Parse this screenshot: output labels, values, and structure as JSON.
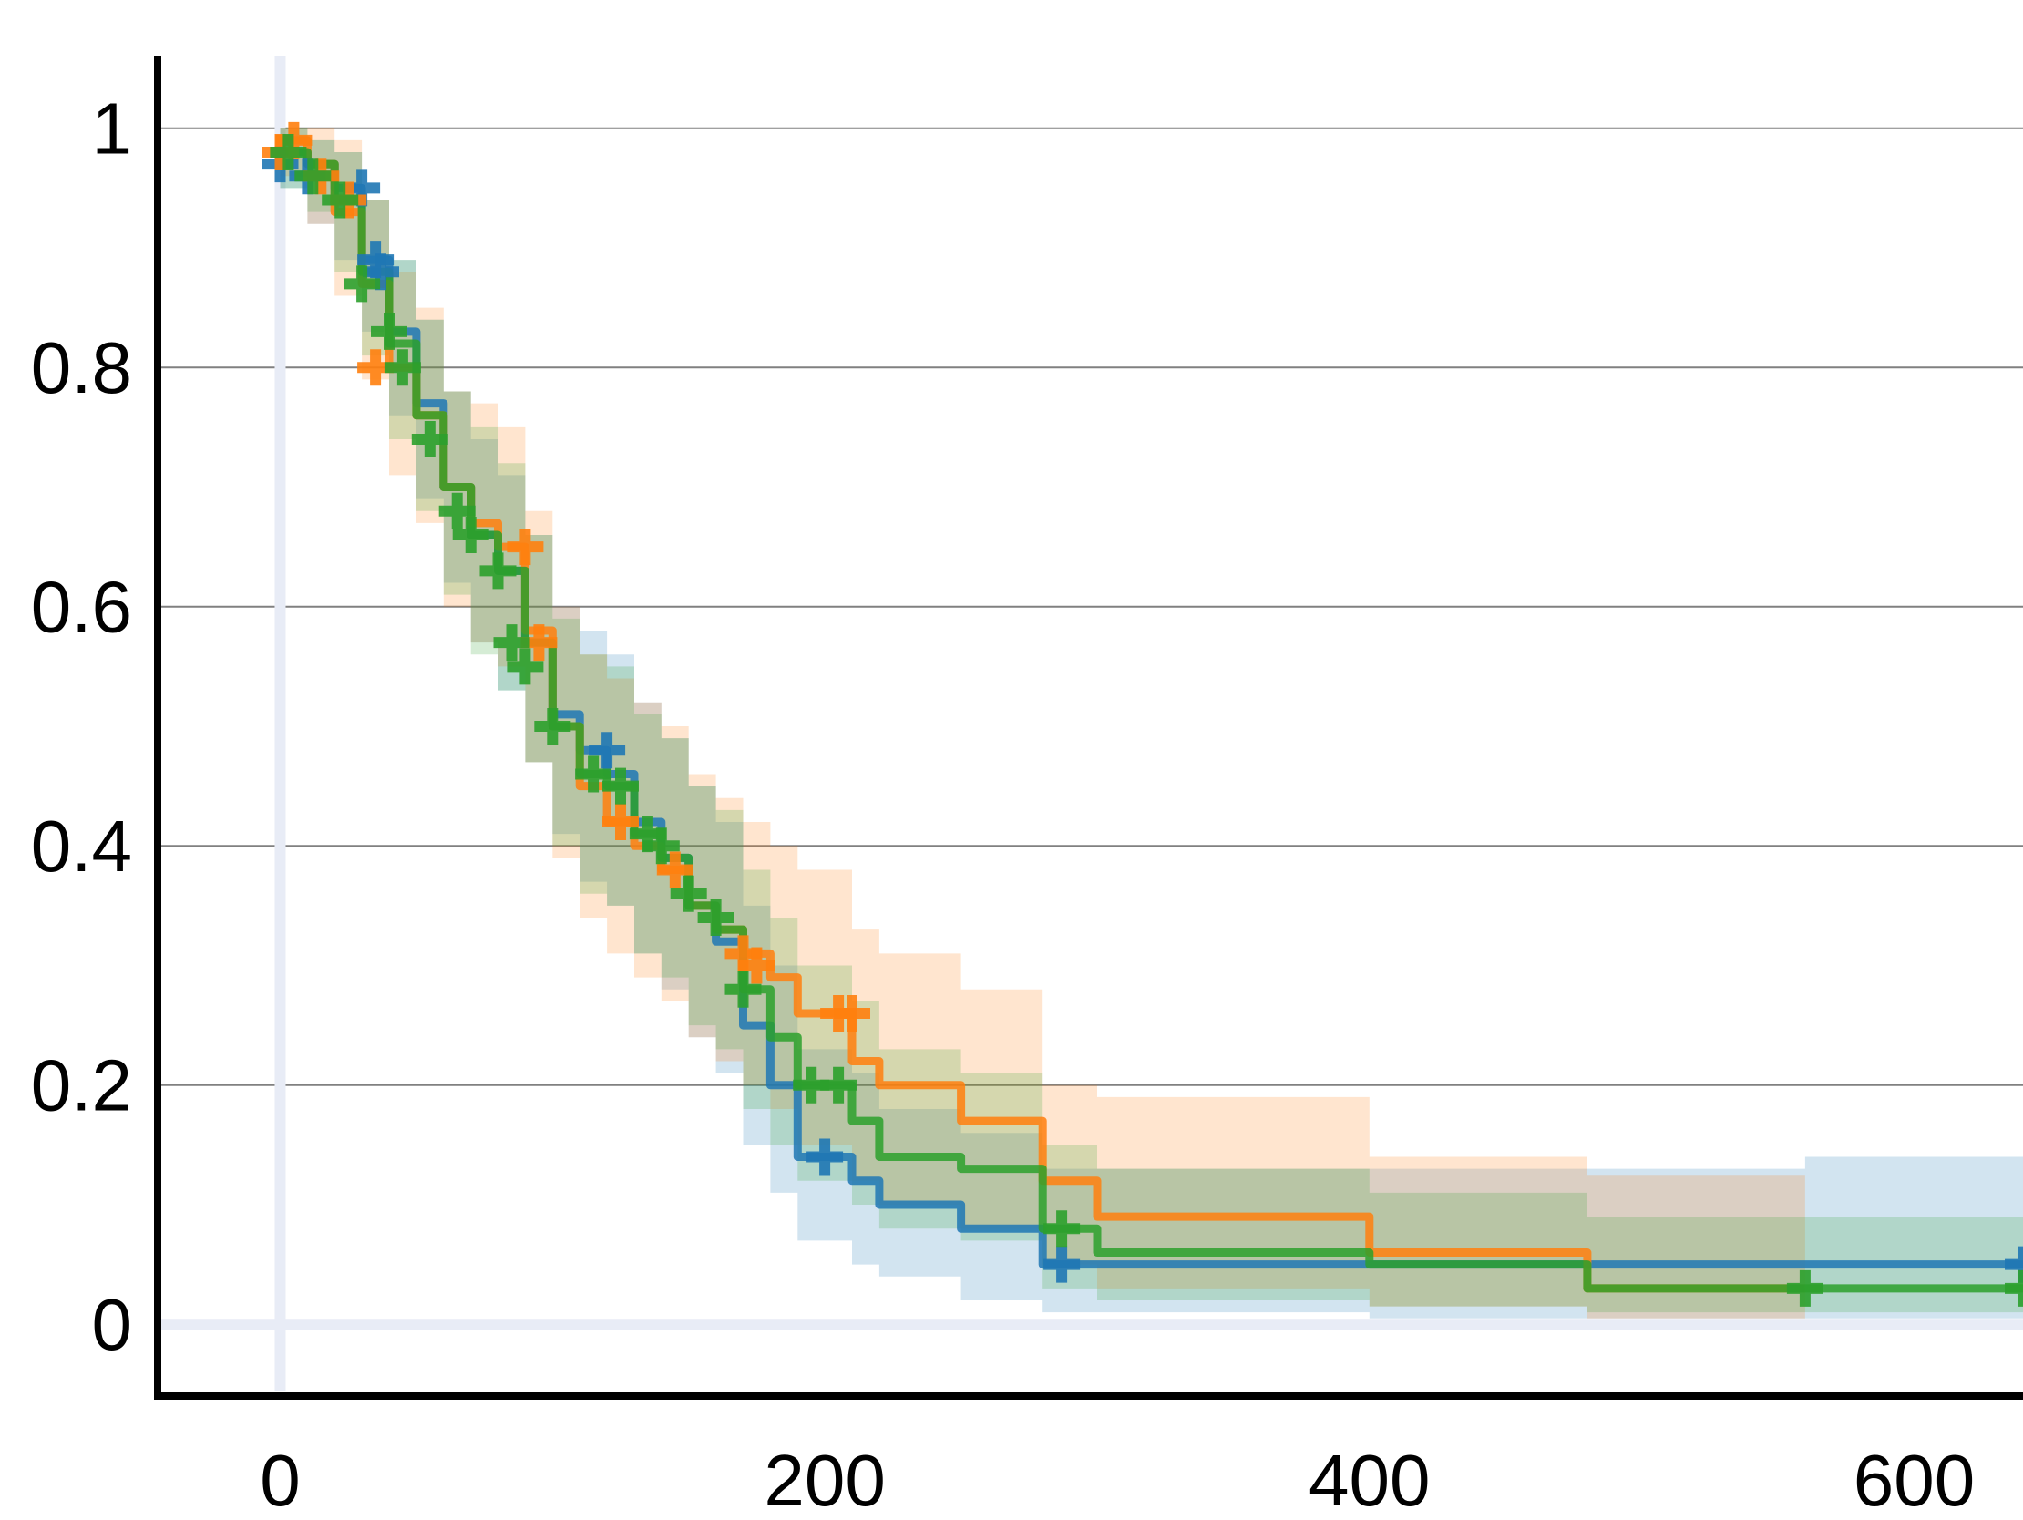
{
  "chart_data": {
    "type": "line",
    "title": "",
    "xlabel": "",
    "ylabel": "",
    "xlim": [
      -45,
      640
    ],
    "ylim": [
      -0.06,
      1.06
    ],
    "x_ticks": [
      0,
      200,
      400,
      600
    ],
    "x_tick_labels": [
      "0",
      "200",
      "400",
      "600"
    ],
    "y_ticks": [
      0,
      0.2,
      0.4,
      0.6,
      0.8,
      1
    ],
    "y_tick_labels": [
      "0",
      "0.2",
      "0.4",
      "0.6",
      "0.8",
      "1"
    ],
    "grid": "horizontal",
    "legend": "none",
    "colors": {
      "blue": "#1f77b4",
      "orange": "#ff7f0e",
      "green": "#2ca02c",
      "grid": "#808080",
      "zero_line": "#e8ecf6"
    },
    "series": [
      {
        "color": "#1f77b4",
        "x": [
          0,
          10,
          20,
          30,
          40,
          50,
          60,
          70,
          80,
          90,
          100,
          110,
          120,
          130,
          140,
          150,
          160,
          170,
          180,
          190,
          200,
          210,
          220,
          250,
          280,
          300,
          400,
          500,
          560,
          640
        ],
        "y": [
          0.98,
          0.97,
          0.95,
          0.89,
          0.83,
          0.77,
          0.7,
          0.66,
          0.63,
          0.57,
          0.51,
          0.48,
          0.46,
          0.42,
          0.39,
          0.35,
          0.32,
          0.25,
          0.2,
          0.14,
          0.14,
          0.12,
          0.1,
          0.08,
          0.05,
          0.05,
          0.05,
          0.05,
          0.05,
          0.05
        ],
        "lower": [
          0.95,
          0.92,
          0.89,
          0.83,
          0.76,
          0.69,
          0.62,
          0.57,
          0.53,
          0.47,
          0.41,
          0.37,
          0.35,
          0.31,
          0.28,
          0.24,
          0.21,
          0.15,
          0.11,
          0.07,
          0.07,
          0.05,
          0.04,
          0.02,
          0.01,
          0.01,
          0.005,
          0.005,
          0.005,
          0.005
        ],
        "upper": [
          1.0,
          0.99,
          0.98,
          0.94,
          0.89,
          0.84,
          0.78,
          0.74,
          0.71,
          0.66,
          0.6,
          0.58,
          0.56,
          0.52,
          0.49,
          0.45,
          0.42,
          0.35,
          0.3,
          0.23,
          0.23,
          0.21,
          0.18,
          0.16,
          0.13,
          0.13,
          0.13,
          0.13,
          0.14,
          0.14
        ],
        "censored": [
          [
            0,
            0.97
          ],
          [
            10,
            0.96
          ],
          [
            30,
            0.95
          ],
          [
            35,
            0.89
          ],
          [
            37,
            0.88
          ],
          [
            120,
            0.48
          ],
          [
            200,
            0.14
          ],
          [
            287,
            0.05
          ],
          [
            640,
            0.05
          ]
        ]
      },
      {
        "color": "#ff7f0e",
        "x": [
          0,
          10,
          20,
          30,
          40,
          50,
          60,
          70,
          80,
          90,
          100,
          110,
          120,
          130,
          140,
          150,
          160,
          170,
          180,
          190,
          200,
          210,
          220,
          250,
          280,
          300,
          400,
          480,
          560
        ],
        "y": [
          0.99,
          0.97,
          0.93,
          0.87,
          0.8,
          0.76,
          0.7,
          0.67,
          0.65,
          0.58,
          0.5,
          0.45,
          0.42,
          0.4,
          0.38,
          0.35,
          0.33,
          0.31,
          0.29,
          0.26,
          0.26,
          0.22,
          0.2,
          0.17,
          0.12,
          0.09,
          0.06,
          0.03,
          0.03
        ],
        "lower": [
          0.96,
          0.92,
          0.86,
          0.79,
          0.71,
          0.67,
          0.6,
          0.57,
          0.55,
          0.47,
          0.39,
          0.34,
          0.31,
          0.29,
          0.27,
          0.24,
          0.22,
          0.2,
          0.18,
          0.15,
          0.15,
          0.12,
          0.1,
          0.08,
          0.05,
          0.03,
          0.015,
          0.005,
          0.005
        ],
        "upper": [
          1.0,
          1.0,
          0.99,
          0.94,
          0.88,
          0.85,
          0.78,
          0.77,
          0.75,
          0.68,
          0.6,
          0.56,
          0.54,
          0.52,
          0.5,
          0.46,
          0.44,
          0.42,
          0.4,
          0.38,
          0.38,
          0.33,
          0.31,
          0.28,
          0.2,
          0.19,
          0.14,
          0.125,
          0.125
        ],
        "censored": [
          [
            0,
            0.98
          ],
          [
            5,
            0.99
          ],
          [
            15,
            0.96
          ],
          [
            25,
            0.94
          ],
          [
            35,
            0.8
          ],
          [
            90,
            0.65
          ],
          [
            95,
            0.57
          ],
          [
            125,
            0.42
          ],
          [
            145,
            0.38
          ],
          [
            170,
            0.31
          ],
          [
            175,
            0.3
          ],
          [
            205,
            0.26
          ],
          [
            210,
            0.26
          ]
        ]
      },
      {
        "color": "#2ca02c",
        "x": [
          0,
          10,
          20,
          30,
          40,
          50,
          60,
          70,
          80,
          90,
          100,
          110,
          120,
          130,
          140,
          150,
          160,
          170,
          180,
          190,
          200,
          210,
          220,
          250,
          280,
          300,
          400,
          480,
          560,
          640
        ],
        "y": [
          0.98,
          0.97,
          0.94,
          0.88,
          0.82,
          0.76,
          0.7,
          0.66,
          0.63,
          0.57,
          0.5,
          0.46,
          0.45,
          0.41,
          0.39,
          0.35,
          0.33,
          0.28,
          0.24,
          0.2,
          0.2,
          0.17,
          0.14,
          0.13,
          0.08,
          0.06,
          0.05,
          0.03,
          0.03,
          0.03
        ],
        "lower": [
          0.95,
          0.93,
          0.88,
          0.81,
          0.74,
          0.68,
          0.61,
          0.56,
          0.53,
          0.47,
          0.4,
          0.36,
          0.35,
          0.31,
          0.29,
          0.25,
          0.23,
          0.18,
          0.15,
          0.12,
          0.12,
          0.1,
          0.08,
          0.07,
          0.03,
          0.02,
          0.015,
          0.01,
          0.01,
          0.01
        ],
        "upper": [
          1.0,
          0.99,
          0.98,
          0.94,
          0.89,
          0.84,
          0.78,
          0.75,
          0.72,
          0.66,
          0.59,
          0.56,
          0.55,
          0.51,
          0.49,
          0.45,
          0.43,
          0.38,
          0.34,
          0.3,
          0.3,
          0.27,
          0.23,
          0.21,
          0.15,
          0.13,
          0.11,
          0.09,
          0.09,
          0.09
        ],
        "censored": [
          [
            3,
            0.98
          ],
          [
            12,
            0.96
          ],
          [
            22,
            0.94
          ],
          [
            30,
            0.87
          ],
          [
            40,
            0.83
          ],
          [
            45,
            0.8
          ],
          [
            55,
            0.74
          ],
          [
            65,
            0.68
          ],
          [
            70,
            0.66
          ],
          [
            80,
            0.63
          ],
          [
            85,
            0.57
          ],
          [
            90,
            0.55
          ],
          [
            100,
            0.5
          ],
          [
            115,
            0.46
          ],
          [
            125,
            0.45
          ],
          [
            135,
            0.41
          ],
          [
            140,
            0.4
          ],
          [
            150,
            0.36
          ],
          [
            160,
            0.34
          ],
          [
            170,
            0.28
          ],
          [
            195,
            0.2
          ],
          [
            205,
            0.2
          ],
          [
            287,
            0.08
          ],
          [
            560,
            0.03
          ],
          [
            640,
            0.03
          ]
        ]
      }
    ]
  }
}
